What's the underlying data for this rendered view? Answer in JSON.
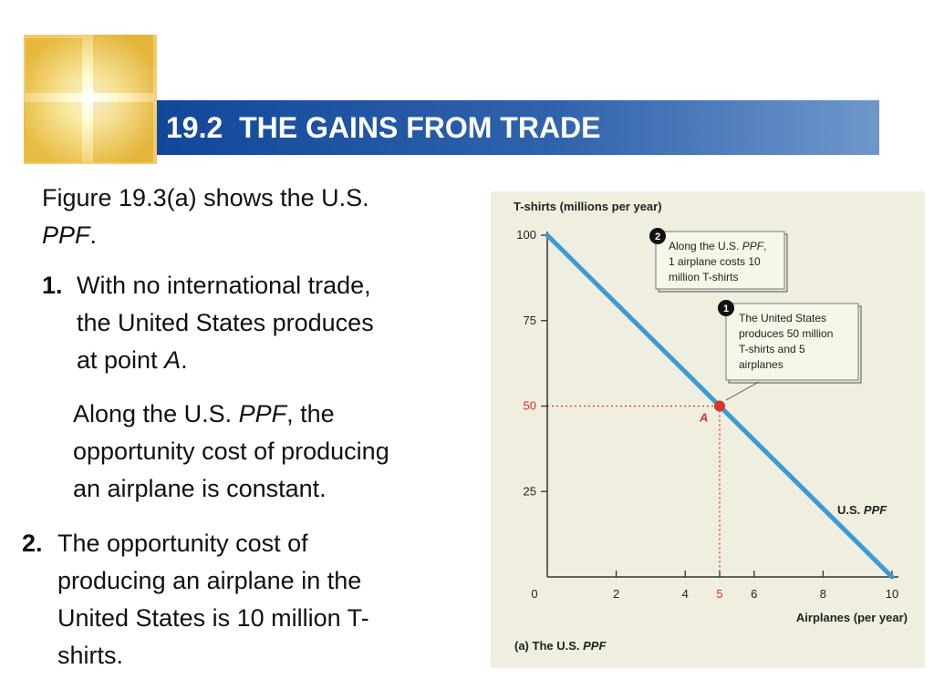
{
  "slide": {
    "title": "19.2  THE GAINS FROM TRADE",
    "intro": {
      "text": "Figure 19.3(a) shows the U.S. ",
      "italic": "PPF",
      "end": "."
    },
    "point1": {
      "number": "1.",
      "line1": "With no international trade,",
      "line2": "the United States produces",
      "line3a": "at point ",
      "line3b": "A",
      "line3c": "."
    },
    "note": {
      "line1a": "Along the U.S. ",
      "line1b": "PPF",
      "line1c": ", the",
      "line2": "opportunity cost of producing",
      "line3": "an airplane is constant."
    },
    "point2": {
      "number": "2.",
      "line1": "The opportunity cost of",
      "line2": "producing an airplane in the",
      "line3": "United States is 10 million T-",
      "line4": "shirts."
    }
  },
  "chart_data": {
    "type": "line",
    "ylabel": "T-shirts (millions per year)",
    "xlabel": "Airplanes (per year)",
    "caption_prefix": "(a) The U.S. ",
    "caption_italic": "PPF",
    "xlim": [
      0,
      10
    ],
    "ylim": [
      0,
      100
    ],
    "x_ticks": [
      0,
      2,
      4,
      5,
      6,
      8,
      10
    ],
    "y_ticks": [
      0,
      25,
      50,
      75,
      100
    ],
    "highlight_tick_color": "#d9342b",
    "line_color": "#3a9bd6",
    "series": [
      {
        "name": "U.S. PPF",
        "x": [
          0,
          10
        ],
        "y": [
          100,
          0
        ]
      }
    ],
    "series_label": {
      "prefix": "U.S. ",
      "italic": "PPF"
    },
    "point": {
      "label": "A",
      "x": 5,
      "y": 50,
      "color": "#d9342b"
    },
    "callouts": [
      {
        "number": "1",
        "lines": [
          "The United States",
          "produces 50 million",
          "T-shirts and 5",
          "airplanes"
        ]
      },
      {
        "number": "2",
        "line1a": "Along the U.S. ",
        "line1b": "PPF",
        "line1c": ",",
        "lines": [
          "1 airplane costs 10",
          "million T-shirts"
        ]
      }
    ]
  }
}
